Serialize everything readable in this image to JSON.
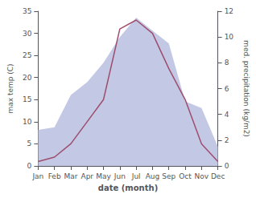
{
  "chart_data": {
    "type": "line",
    "categories": [
      "Jan",
      "Feb",
      "Mar",
      "Apr",
      "May",
      "Jun",
      "Jul",
      "Aug",
      "Sep",
      "Oct",
      "Nov",
      "Dec"
    ],
    "series": [
      {
        "type": "area",
        "axis": "y2",
        "color": "#b8c0e0",
        "values": [
          2.8,
          3.0,
          5.5,
          6.5,
          8.0,
          10.0,
          11.5,
          10.5,
          9.5,
          5.0,
          4.5,
          1.5
        ]
      },
      {
        "type": "line",
        "color": "#9e4d6e",
        "values": [
          1,
          2,
          5,
          10,
          15,
          31,
          33,
          30,
          22,
          15,
          5,
          1
        ]
      }
    ],
    "xlabel": "date (month)",
    "ylabel": "max temp (C)",
    "y2label": "med. precipitation (kg/m2)",
    "ylim": [
      0,
      35
    ],
    "yticks": [
      0,
      5,
      10,
      15,
      20,
      25,
      30,
      35
    ],
    "y2lim": [
      0,
      12
    ],
    "y2ticks": [
      0,
      2,
      4,
      6,
      8,
      10,
      12
    ],
    "grid": false
  }
}
